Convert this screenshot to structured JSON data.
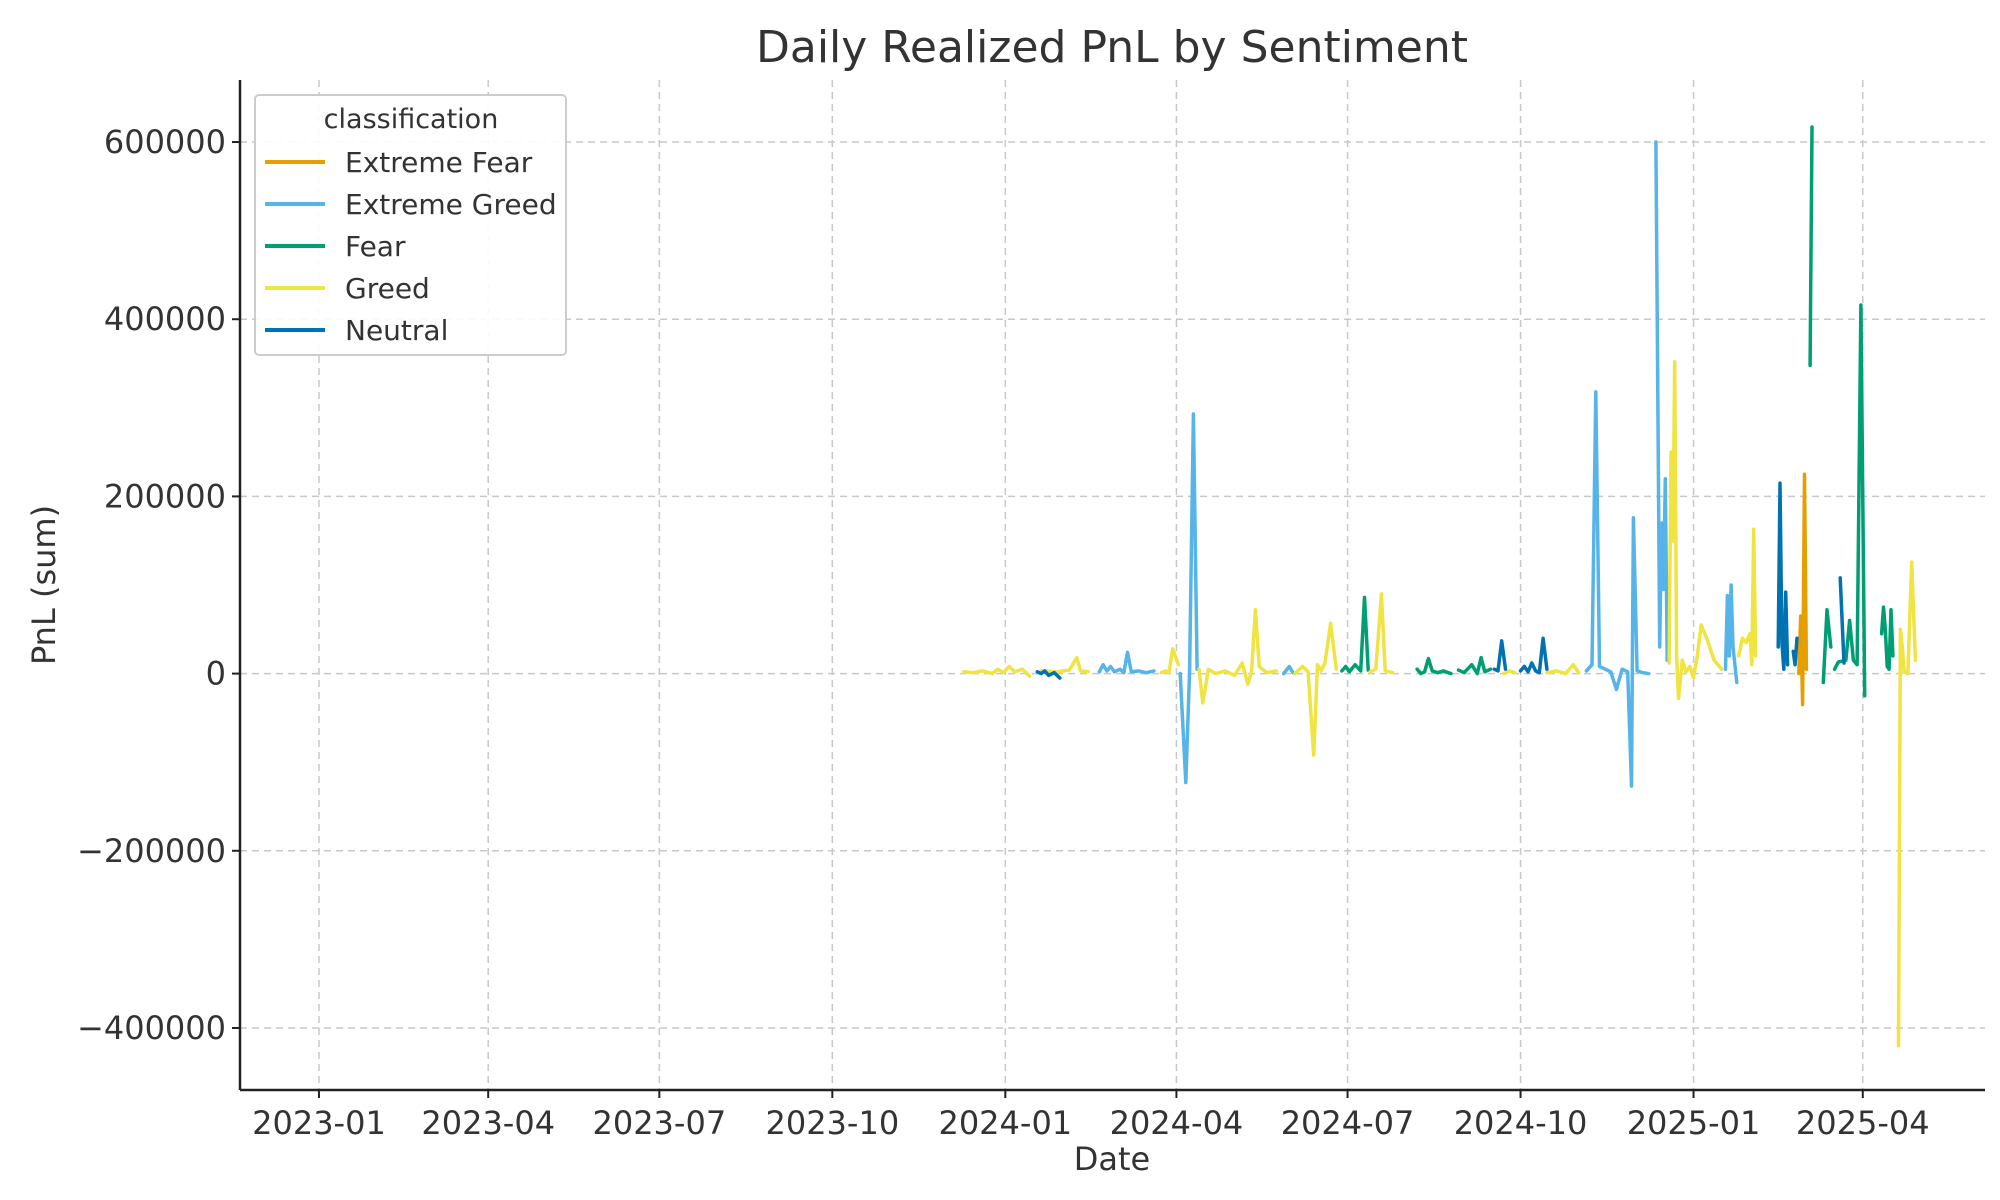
{
  "chart_data": {
    "type": "line",
    "title": "Daily Realized PnL by Sentiment",
    "xlabel": "Date",
    "ylabel": "PnL (sum)",
    "xlim": [
      "2022-11-20",
      "2025-06-05"
    ],
    "ylim": [
      -470000,
      670000
    ],
    "x_ticks": [
      "2023-01",
      "2023-04",
      "2023-07",
      "2023-10",
      "2024-01",
      "2024-04",
      "2024-07",
      "2024-10",
      "2025-01",
      "2025-04"
    ],
    "y_ticks": [
      600000,
      400000,
      200000,
      0,
      -200000,
      -400000
    ],
    "y_tick_labels": [
      "600000",
      "400000",
      "200000",
      "0",
      "−200000",
      "−400000"
    ],
    "grid": true,
    "legend": {
      "title": "classification",
      "position": "top-left"
    },
    "series": [
      {
        "name": "Extreme Fear",
        "color": "#E69F00",
        "points": [
          [
            "2025-02-26",
            0
          ],
          [
            "2025-02-27",
            65000
          ],
          [
            "2025-02-28",
            -35000
          ],
          [
            "2025-03-01",
            225000
          ],
          [
            "2025-03-02",
            5000
          ]
        ]
      },
      {
        "name": "Extreme Greed",
        "color": "#56B4E9",
        "points": [
          [
            "2024-02-20",
            2000
          ],
          [
            "2024-02-22",
            10000
          ],
          [
            "2024-02-24",
            3000
          ],
          [
            "2024-02-26",
            8000
          ],
          [
            "2024-02-28",
            2000
          ],
          [
            "2024-03-02",
            5000
          ],
          [
            "2024-03-04",
            1000
          ],
          [
            "2024-03-06",
            24000
          ],
          [
            "2024-03-08",
            2000
          ],
          [
            "2024-03-12",
            3000
          ],
          [
            "2024-03-16",
            1000
          ],
          [
            "2024-03-20",
            3000
          ],
          null,
          [
            "2024-04-03",
            0
          ],
          [
            "2024-04-06",
            -123000
          ],
          [
            "2024-04-08",
            3000
          ],
          [
            "2024-04-10",
            293000
          ],
          [
            "2024-04-12",
            5000
          ],
          null,
          [
            "2024-05-28",
            0
          ],
          [
            "2024-05-31",
            8000
          ],
          [
            "2024-06-02",
            1000
          ],
          null,
          [
            "2024-11-05",
            3000
          ],
          [
            "2024-11-08",
            10000
          ],
          [
            "2024-11-10",
            318000
          ],
          [
            "2024-11-12",
            8000
          ],
          [
            "2024-11-15",
            5000
          ],
          [
            "2024-11-18",
            2000
          ],
          [
            "2024-11-21",
            -18000
          ],
          [
            "2024-11-24",
            5000
          ],
          [
            "2024-11-27",
            2000
          ],
          [
            "2024-11-29",
            -127000
          ],
          [
            "2024-11-30",
            176000
          ],
          [
            "2024-12-02",
            3000
          ],
          [
            "2024-12-05",
            1000
          ],
          [
            "2024-12-08",
            0
          ],
          null,
          [
            "2024-12-12",
            600000
          ],
          [
            "2024-12-14",
            30000
          ],
          [
            "2024-12-15",
            170000
          ],
          [
            "2024-12-16",
            95000
          ],
          [
            "2024-12-17",
            220000
          ],
          [
            "2024-12-18",
            15000
          ],
          [
            "2024-12-19",
            65000
          ],
          null,
          [
            "2025-01-18",
            5000
          ],
          [
            "2025-01-19",
            88000
          ],
          [
            "2025-01-20",
            20000
          ],
          [
            "2025-01-21",
            100000
          ],
          [
            "2025-01-22",
            30000
          ],
          [
            "2025-01-24",
            -10000
          ]
        ]
      },
      {
        "name": "Fear",
        "color": "#009E73",
        "points": [
          [
            "2024-06-28",
            3000
          ],
          [
            "2024-06-30",
            8000
          ],
          [
            "2024-07-02",
            2000
          ],
          [
            "2024-07-05",
            10000
          ],
          [
            "2024-07-08",
            3000
          ],
          [
            "2024-07-10",
            86000
          ],
          [
            "2024-07-12",
            4000
          ],
          null,
          [
            "2024-08-07",
            5000
          ],
          [
            "2024-08-09",
            0
          ],
          [
            "2024-08-11",
            2000
          ],
          [
            "2024-08-13",
            17000
          ],
          [
            "2024-08-15",
            3000
          ],
          [
            "2024-08-18",
            1000
          ],
          [
            "2024-08-21",
            3000
          ],
          [
            "2024-08-25",
            0
          ],
          null,
          [
            "2024-08-29",
            4000
          ],
          [
            "2024-09-01",
            1000
          ],
          [
            "2024-09-05",
            10000
          ],
          [
            "2024-09-08",
            0
          ],
          [
            "2024-09-10",
            18000
          ],
          [
            "2024-09-12",
            2000
          ],
          [
            "2024-09-15",
            5000
          ],
          null,
          [
            "2025-03-04",
            348000
          ],
          [
            "2025-03-05",
            617000
          ],
          null,
          [
            "2025-03-11",
            -10000
          ],
          [
            "2025-03-13",
            72000
          ],
          [
            "2025-03-15",
            30000
          ],
          null,
          [
            "2025-03-17",
            5000
          ],
          [
            "2025-03-19",
            13000
          ],
          [
            "2025-03-23",
            15000
          ],
          [
            "2025-03-25",
            60000
          ],
          [
            "2025-03-27",
            15000
          ],
          [
            "2025-03-29",
            10000
          ],
          [
            "2025-03-31",
            416000
          ],
          [
            "2025-04-02",
            -25000
          ],
          null,
          [
            "2025-04-11",
            45000
          ],
          [
            "2025-04-12",
            75000
          ],
          [
            "2025-04-13",
            50000
          ],
          [
            "2025-04-14",
            8000
          ],
          [
            "2025-04-15",
            5000
          ],
          [
            "2025-04-16",
            72000
          ],
          [
            "2025-04-17",
            20000
          ]
        ]
      },
      {
        "name": "Greed",
        "color": "#F0E442",
        "points": [
          [
            "2023-12-10",
            2000
          ],
          [
            "2023-12-15",
            1000
          ],
          [
            "2023-12-20",
            3000
          ],
          [
            "2023-12-25",
            0
          ],
          [
            "2023-12-28",
            5000
          ],
          [
            "2023-12-31",
            1000
          ],
          [
            "2024-01-03",
            8000
          ],
          [
            "2024-01-06",
            2000
          ],
          [
            "2024-01-10",
            5000
          ],
          [
            "2024-01-14",
            -3000
          ],
          null,
          [
            "2024-01-20",
            3000
          ],
          [
            "2024-01-28",
            2000
          ],
          [
            "2024-02-04",
            4000
          ],
          [
            "2024-02-08",
            18000
          ],
          [
            "2024-02-10",
            3000
          ],
          [
            "2024-02-14",
            2000
          ],
          null,
          [
            "2024-03-24",
            1000
          ],
          [
            "2024-03-26",
            3000
          ],
          [
            "2024-03-28",
            1000
          ],
          [
            "2024-03-30",
            28000
          ],
          [
            "2024-04-02",
            10000
          ],
          null,
          [
            "2024-04-13",
            5000
          ],
          [
            "2024-04-15",
            -33000
          ],
          [
            "2024-04-18",
            5000
          ],
          [
            "2024-04-22",
            0
          ],
          [
            "2024-04-27",
            3000
          ],
          [
            "2024-05-02",
            -2000
          ],
          [
            "2024-05-06",
            12000
          ],
          [
            "2024-05-09",
            -12000
          ],
          [
            "2024-05-11",
            3000
          ],
          [
            "2024-05-13",
            72000
          ],
          [
            "2024-05-15",
            8000
          ],
          [
            "2024-05-19",
            1000
          ],
          [
            "2024-05-24",
            3000
          ],
          null,
          [
            "2024-06-03",
            0
          ],
          [
            "2024-06-07",
            8000
          ],
          [
            "2024-06-10",
            2000
          ],
          [
            "2024-06-13",
            -92000
          ],
          [
            "2024-06-15",
            10000
          ],
          [
            "2024-06-17",
            3000
          ],
          [
            "2024-06-19",
            12000
          ],
          [
            "2024-06-22",
            57000
          ],
          [
            "2024-06-25",
            5000
          ],
          null,
          [
            "2024-07-13",
            2000
          ],
          [
            "2024-07-16",
            5000
          ],
          [
            "2024-07-19",
            90000
          ],
          [
            "2024-07-21",
            3000
          ],
          [
            "2024-07-25",
            1000
          ],
          null,
          [
            "2024-09-22",
            0
          ],
          [
            "2024-09-25",
            3000
          ],
          [
            "2024-09-28",
            1000
          ],
          null,
          [
            "2024-10-15",
            1000
          ],
          [
            "2024-10-20",
            3000
          ],
          [
            "2024-10-25",
            0
          ],
          [
            "2024-10-29",
            10000
          ],
          [
            "2024-11-01",
            1000
          ],
          null,
          [
            "2024-12-19",
            12000
          ],
          [
            "2024-12-20",
            250000
          ],
          [
            "2024-12-21",
            150000
          ],
          [
            "2024-12-22",
            352000
          ],
          [
            "2024-12-23",
            20000
          ],
          [
            "2024-12-24",
            -28000
          ],
          [
            "2024-12-26",
            15000
          ],
          [
            "2024-12-28",
            2000
          ],
          [
            "2024-12-30",
            8000
          ],
          [
            "2025-01-01",
            -5000
          ],
          [
            "2025-01-03",
            20000
          ],
          [
            "2025-01-05",
            55000
          ],
          [
            "2025-01-08",
            40000
          ],
          [
            "2025-01-12",
            15000
          ],
          [
            "2025-01-16",
            5000
          ],
          null,
          [
            "2025-01-25",
            20000
          ],
          [
            "2025-01-27",
            40000
          ],
          [
            "2025-01-29",
            35000
          ],
          [
            "2025-01-31",
            45000
          ],
          [
            "2025-02-01",
            10000
          ],
          [
            "2025-02-02",
            163000
          ],
          [
            "2025-02-03",
            20000
          ],
          null,
          [
            "2025-04-20",
            -420000
          ],
          [
            "2025-04-21",
            50000
          ],
          [
            "2025-04-22",
            30000
          ],
          [
            "2025-04-23",
            2000
          ],
          [
            "2025-04-25",
            0
          ],
          [
            "2025-04-27",
            126000
          ],
          [
            "2025-04-29",
            15000
          ]
        ]
      },
      {
        "name": "Neutral",
        "color": "#0072B2",
        "points": [
          [
            "2024-01-18",
            2000
          ],
          [
            "2024-01-20",
            0
          ],
          [
            "2024-01-22",
            3000
          ],
          [
            "2024-01-24",
            -2000
          ],
          [
            "2024-01-27",
            1000
          ],
          [
            "2024-01-30",
            -5000
          ],
          null,
          [
            "2024-09-17",
            5000
          ],
          [
            "2024-09-19",
            3000
          ],
          [
            "2024-09-21",
            37000
          ],
          [
            "2024-09-23",
            5000
          ],
          null,
          [
            "2024-10-01",
            3000
          ],
          [
            "2024-10-03",
            8000
          ],
          [
            "2024-10-05",
            2000
          ],
          [
            "2024-10-07",
            12000
          ],
          [
            "2024-10-09",
            3000
          ],
          [
            "2024-10-11",
            1000
          ],
          [
            "2024-10-13",
            40000
          ],
          [
            "2024-10-15",
            5000
          ],
          null,
          [
            "2025-02-15",
            30000
          ],
          [
            "2025-02-16",
            215000
          ],
          [
            "2025-02-17",
            35000
          ],
          [
            "2025-02-18",
            5000
          ],
          [
            "2025-02-19",
            92000
          ],
          [
            "2025-02-20",
            10000
          ],
          null,
          [
            "2025-02-23",
            25000
          ],
          [
            "2025-02-24",
            10000
          ],
          [
            "2025-02-25",
            40000
          ],
          null,
          [
            "2025-03-20",
            108000
          ],
          [
            "2025-03-22",
            12000
          ]
        ]
      }
    ]
  }
}
